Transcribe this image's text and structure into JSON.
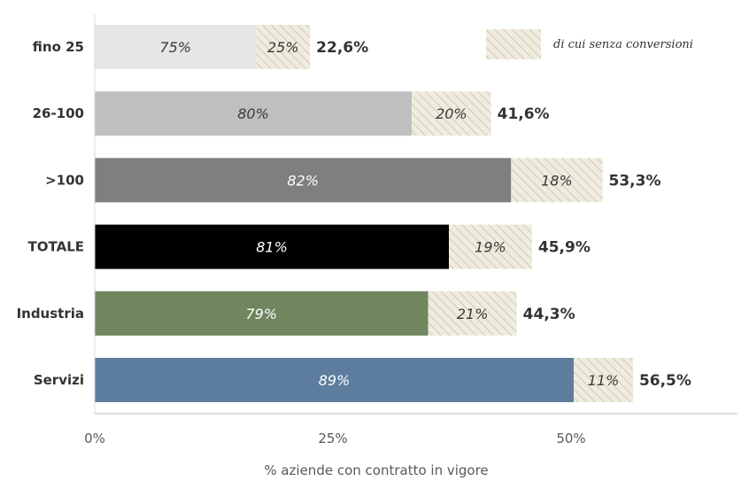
{
  "chart_data": {
    "type": "bar",
    "orientation": "horizontal",
    "stacked": true,
    "categories": [
      "fino 25",
      "26-100",
      ">100",
      "TOTALE",
      "Industria",
      "Servizi"
    ],
    "totals": [
      22.6,
      41.6,
      53.3,
      45.9,
      44.3,
      56.5
    ],
    "total_labels": [
      "22,6%",
      "41,6%",
      "53,3%",
      "45,9%",
      "44,3%",
      "56,5%"
    ],
    "segments": [
      {
        "name": "",
        "share_labels": [
          "75%",
          "80%",
          "82%",
          "81%",
          "79%",
          "89%"
        ]
      },
      {
        "name": "di cui senza conversioni",
        "share_labels": [
          "25%",
          "20%",
          "18%",
          "19%",
          "21%",
          "11%"
        ]
      }
    ],
    "share_main_pct": [
      75,
      80,
      82,
      81,
      79,
      89
    ],
    "bar_colors": [
      "#e6e6e6",
      "#bfbfbf",
      "#7f7f7f",
      "#000000",
      "#6f865f",
      "#5d7d9e"
    ],
    "bar_label_colors": [
      "#3a3a3a",
      "#3a3a3a",
      "#ffffff",
      "#ffffff",
      "#ffffff",
      "#ffffff"
    ],
    "hatch_colors": {
      "base": "#f0ece0",
      "stripe": "#d6cdb4"
    },
    "xticks": [
      "0%",
      "25%",
      "50%"
    ],
    "xtick_values": [
      0,
      25,
      50
    ],
    "xlim": [
      0,
      68
    ],
    "xlabel": "% aziende con contratto in vigore",
    "legend": {
      "label": "di cui senza conversioni",
      "position": "top-right"
    },
    "grid": false
  }
}
